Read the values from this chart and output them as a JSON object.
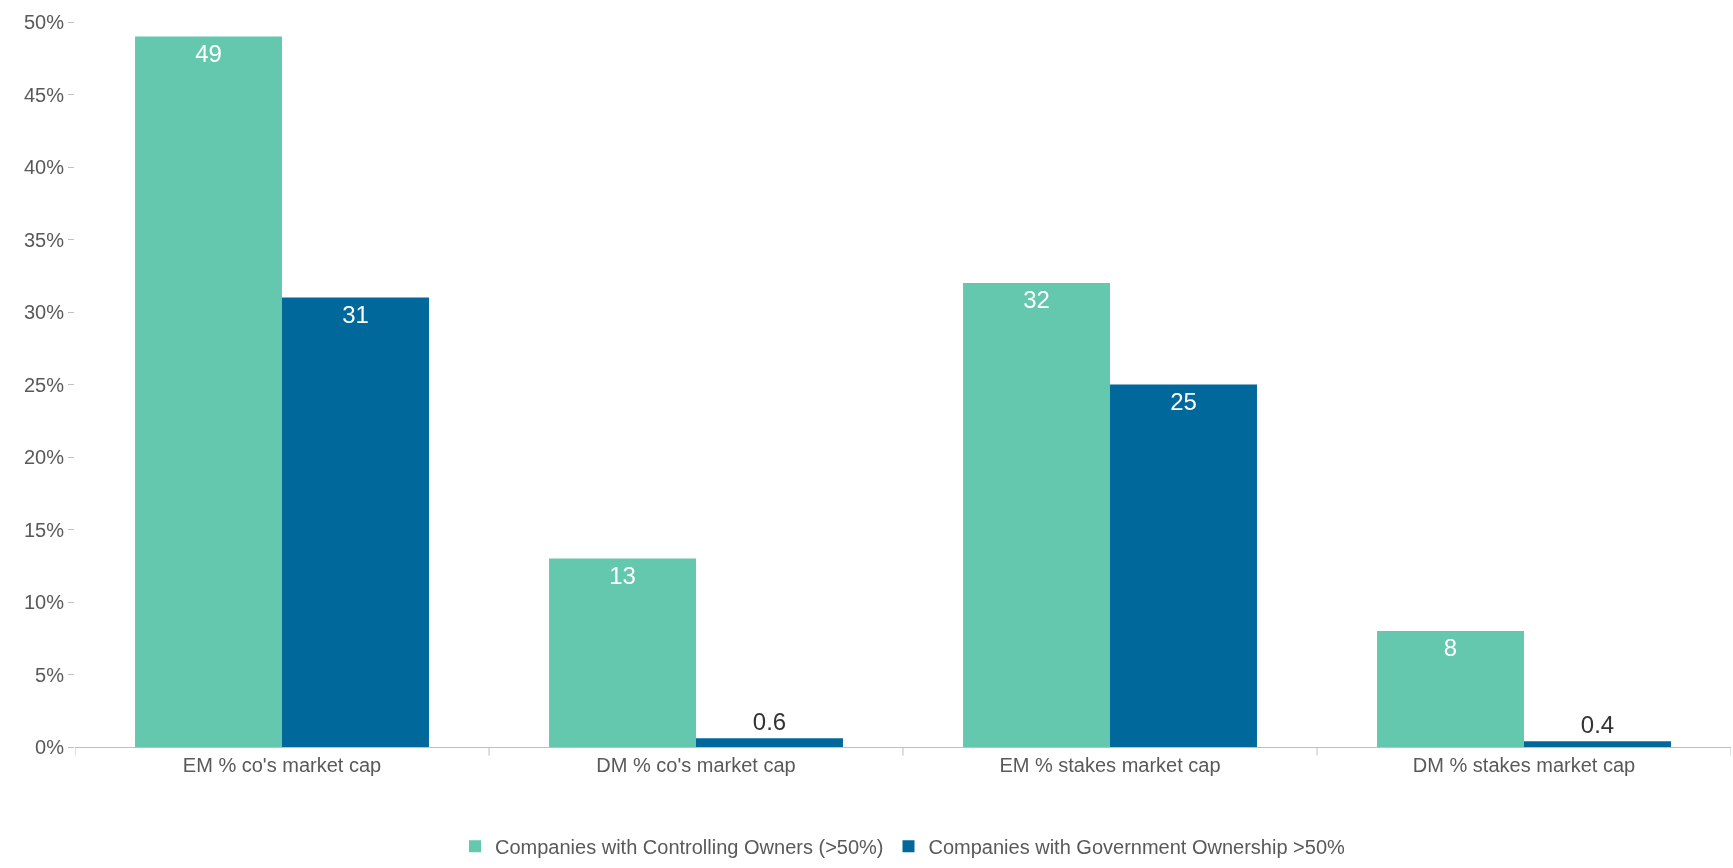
{
  "chart_data": {
    "type": "bar",
    "categories": [
      "EM % co's market cap",
      "DM % co's market cap",
      "EM % stakes market cap",
      "DM % stakes market cap"
    ],
    "series": [
      {
        "name": "Companies with Controlling Owners (>50%)",
        "color": "#64c8af",
        "values": [
          49,
          13,
          32,
          8
        ]
      },
      {
        "name": "Companies with Government Ownership >50%",
        "color": "#00689b",
        "values": [
          31,
          0.6,
          25,
          0.4
        ]
      }
    ],
    "ylim": [
      0,
      50
    ],
    "yticks": [
      {
        "value": 0,
        "label": "0%"
      },
      {
        "value": 5,
        "label": "5%"
      },
      {
        "value": 10,
        "label": "10%"
      },
      {
        "value": 15,
        "label": "15%"
      },
      {
        "value": 20,
        "label": "20%"
      },
      {
        "value": 25,
        "label": "25%"
      },
      {
        "value": 30,
        "label": "30%"
      },
      {
        "value": 35,
        "label": "35%"
      },
      {
        "value": 40,
        "label": "40%"
      },
      {
        "value": 45,
        "label": "45%"
      },
      {
        "value": 50,
        "label": "50%"
      }
    ],
    "data_labels": true,
    "legend": "bottom"
  }
}
